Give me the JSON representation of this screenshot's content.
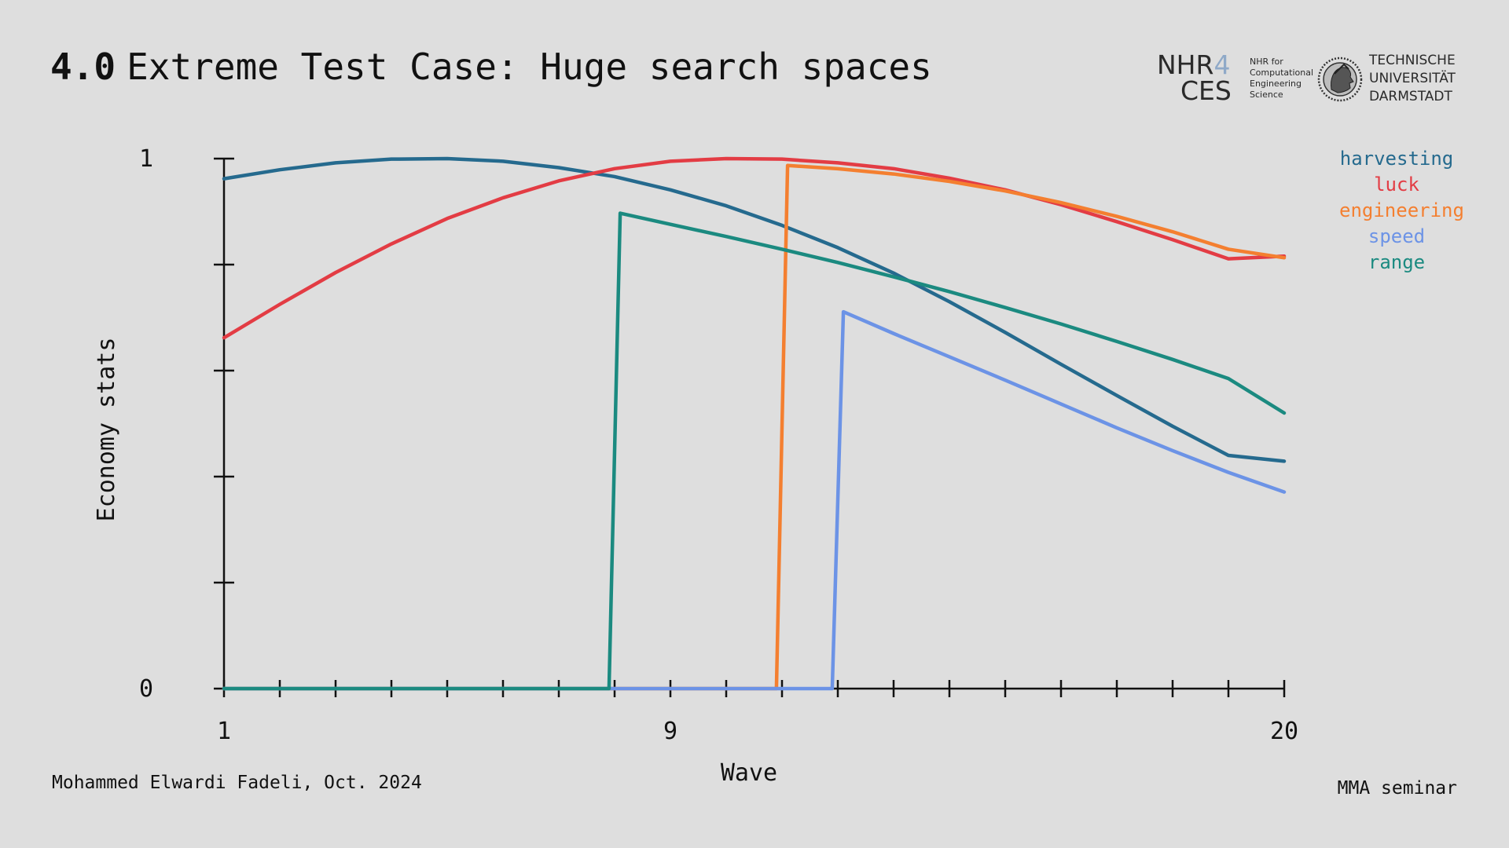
{
  "slide": {
    "section_number": "4.0",
    "title": "Extreme Test Case: Huge search spaces",
    "footer_left": "Mohammed Elwardi Fadeli, Oct. 2024",
    "footer_right": "MMA seminar"
  },
  "logos": {
    "nhr_line1": "NHR",
    "nhr_four": "4",
    "nhr_line2": "CES",
    "nhr_small": [
      "NHR for",
      "Computational",
      "Engineering",
      "Science"
    ],
    "tu_lines": [
      "TECHNISCHE",
      "UNIVERSITÄT",
      "DARMSTADT"
    ],
    "tu_seal_icon": "athena-seal-icon"
  },
  "chart_data": {
    "type": "line",
    "xlabel": "Wave",
    "ylabel": "Economy stats",
    "xlim": [
      1,
      20
    ],
    "ylim": [
      0,
      1
    ],
    "x_tick_labels": [
      {
        "value": 1,
        "label": "1"
      },
      {
        "value": 9,
        "label": "9"
      },
      {
        "value": 20,
        "label": "20"
      }
    ],
    "y_tick_labels": [
      {
        "value": 0,
        "label": "0"
      },
      {
        "value": 1,
        "label": "1"
      }
    ],
    "x_minor_ticks": 1,
    "y_minor_ticks": 0.2,
    "grid": false,
    "legend_position": "top-right",
    "series": [
      {
        "name": "harvesting",
        "color": "#256a8e",
        "points": [
          [
            1,
            0.962
          ],
          [
            2,
            0.979
          ],
          [
            3,
            0.992
          ],
          [
            4,
            0.999
          ],
          [
            5,
            1.0
          ],
          [
            6,
            0.995
          ],
          [
            7,
            0.983
          ],
          [
            8,
            0.966
          ],
          [
            9,
            0.941
          ],
          [
            10,
            0.911
          ],
          [
            11,
            0.874
          ],
          [
            12,
            0.832
          ],
          [
            13,
            0.784
          ],
          [
            14,
            0.73
          ],
          [
            15,
            0.672
          ],
          [
            16,
            0.612
          ],
          [
            17,
            0.553
          ],
          [
            18,
            0.495
          ],
          [
            19,
            0.44
          ],
          [
            20,
            0.429
          ]
        ]
      },
      {
        "name": "luck",
        "color": "#e33c44",
        "points": [
          [
            1,
            0.662
          ],
          [
            2,
            0.725
          ],
          [
            3,
            0.785
          ],
          [
            4,
            0.839
          ],
          [
            5,
            0.887
          ],
          [
            6,
            0.926
          ],
          [
            7,
            0.958
          ],
          [
            8,
            0.981
          ],
          [
            9,
            0.995
          ],
          [
            10,
            1.0
          ],
          [
            11,
            0.999
          ],
          [
            12,
            0.992
          ],
          [
            13,
            0.981
          ],
          [
            14,
            0.963
          ],
          [
            15,
            0.941
          ],
          [
            16,
            0.913
          ],
          [
            17,
            0.881
          ],
          [
            18,
            0.847
          ],
          [
            19,
            0.811
          ],
          [
            20,
            0.816
          ]
        ]
      },
      {
        "name": "engineering",
        "color": "#f47f30",
        "points": [
          [
            1,
            0.0
          ],
          [
            10.9,
            0.0
          ],
          [
            11.1,
            0.987
          ],
          [
            12,
            0.981
          ],
          [
            13,
            0.971
          ],
          [
            14,
            0.957
          ],
          [
            15,
            0.939
          ],
          [
            16,
            0.917
          ],
          [
            17,
            0.891
          ],
          [
            18,
            0.862
          ],
          [
            19,
            0.829
          ],
          [
            20,
            0.813
          ]
        ]
      },
      {
        "name": "speed",
        "color": "#6c93e6",
        "points": [
          [
            1,
            0.0
          ],
          [
            11.9,
            0.0
          ],
          [
            12.1,
            0.711
          ],
          [
            13,
            0.67
          ],
          [
            14,
            0.626
          ],
          [
            15,
            0.582
          ],
          [
            16,
            0.537
          ],
          [
            17,
            0.492
          ],
          [
            18,
            0.449
          ],
          [
            19,
            0.408
          ],
          [
            20,
            0.371
          ]
        ]
      },
      {
        "name": "range",
        "color": "#1b8a80",
        "points": [
          [
            1,
            0.0
          ],
          [
            7.9,
            0.0
          ],
          [
            8.1,
            0.897
          ],
          [
            9,
            0.876
          ],
          [
            10,
            0.853
          ],
          [
            11,
            0.829
          ],
          [
            12,
            0.804
          ],
          [
            13,
            0.777
          ],
          [
            14,
            0.749
          ],
          [
            15,
            0.719
          ],
          [
            16,
            0.688
          ],
          [
            17,
            0.655
          ],
          [
            18,
            0.621
          ],
          [
            19,
            0.585
          ],
          [
            20,
            0.52
          ]
        ]
      }
    ]
  }
}
